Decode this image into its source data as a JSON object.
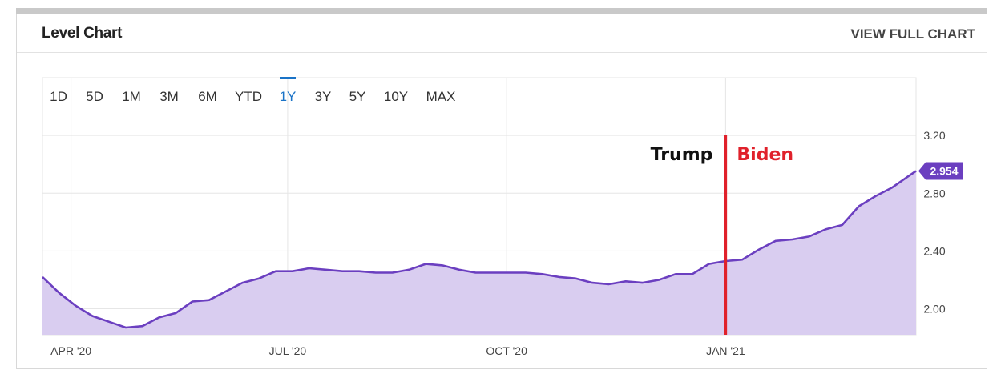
{
  "card": {
    "title": "Level Chart",
    "view_full_label": "VIEW FULL CHART"
  },
  "range_tabs": [
    {
      "label": "1D",
      "active": false
    },
    {
      "label": "5D",
      "active": false
    },
    {
      "label": "1M",
      "active": false
    },
    {
      "label": "3M",
      "active": false
    },
    {
      "label": "6M",
      "active": false
    },
    {
      "label": "YTD",
      "active": false
    },
    {
      "label": "1Y",
      "active": true
    },
    {
      "label": "3Y",
      "active": false
    },
    {
      "label": "5Y",
      "active": false
    },
    {
      "label": "10Y",
      "active": false
    },
    {
      "label": "MAX",
      "active": false
    }
  ],
  "colors": {
    "line": "#6b3fc0",
    "fill": "#d9cdf0",
    "active_tab": "#1a73c7",
    "marker": "#e0212b",
    "badge": "#6b3fc0"
  },
  "chart_data": {
    "type": "area",
    "title": "Level Chart",
    "xlabel": "",
    "ylabel": "",
    "x_tick_labels": [
      "APR '20",
      "JUL '20",
      "OCT '20",
      "JAN '21"
    ],
    "y_tick_labels": [
      "3.20",
      "2.80",
      "2.40",
      "2.00"
    ],
    "y_ticks": [
      3.2,
      2.8,
      2.4,
      2.0
    ],
    "ylim": [
      1.82,
      3.6
    ],
    "x_range": [
      "2020-03-20",
      "2021-03-22"
    ],
    "x_ticks": [
      "2020-04-01",
      "2020-07-01",
      "2020-10-01",
      "2021-01-01"
    ],
    "grid": true,
    "last_value": 2.954,
    "last_value_label": "2.954",
    "series": [
      {
        "points": [
          [
            "2020-03-20",
            2.22
          ],
          [
            "2020-03-27",
            2.11
          ],
          [
            "2020-04-03",
            2.02
          ],
          [
            "2020-04-10",
            1.95
          ],
          [
            "2020-04-17",
            1.91
          ],
          [
            "2020-04-24",
            1.87
          ],
          [
            "2020-05-01",
            1.88
          ],
          [
            "2020-05-08",
            1.94
          ],
          [
            "2020-05-15",
            1.97
          ],
          [
            "2020-05-22",
            2.05
          ],
          [
            "2020-05-29",
            2.06
          ],
          [
            "2020-06-05",
            2.12
          ],
          [
            "2020-06-12",
            2.18
          ],
          [
            "2020-06-19",
            2.21
          ],
          [
            "2020-06-26",
            2.26
          ],
          [
            "2020-07-03",
            2.26
          ],
          [
            "2020-07-10",
            2.28
          ],
          [
            "2020-07-17",
            2.27
          ],
          [
            "2020-07-24",
            2.26
          ],
          [
            "2020-07-31",
            2.26
          ],
          [
            "2020-08-07",
            2.25
          ],
          [
            "2020-08-14",
            2.25
          ],
          [
            "2020-08-21",
            2.27
          ],
          [
            "2020-08-28",
            2.31
          ],
          [
            "2020-09-04",
            2.3
          ],
          [
            "2020-09-11",
            2.27
          ],
          [
            "2020-09-18",
            2.25
          ],
          [
            "2020-09-25",
            2.25
          ],
          [
            "2020-10-02",
            2.25
          ],
          [
            "2020-10-09",
            2.25
          ],
          [
            "2020-10-16",
            2.24
          ],
          [
            "2020-10-23",
            2.22
          ],
          [
            "2020-10-30",
            2.21
          ],
          [
            "2020-11-06",
            2.18
          ],
          [
            "2020-11-13",
            2.17
          ],
          [
            "2020-11-20",
            2.19
          ],
          [
            "2020-11-27",
            2.18
          ],
          [
            "2020-12-04",
            2.2
          ],
          [
            "2020-12-11",
            2.24
          ],
          [
            "2020-12-18",
            2.24
          ],
          [
            "2020-12-25",
            2.31
          ],
          [
            "2021-01-01",
            2.33
          ],
          [
            "2021-01-08",
            2.34
          ],
          [
            "2021-01-15",
            2.41
          ],
          [
            "2021-01-22",
            2.47
          ],
          [
            "2021-01-29",
            2.48
          ],
          [
            "2021-02-05",
            2.5
          ],
          [
            "2021-02-12",
            2.55
          ],
          [
            "2021-02-19",
            2.58
          ],
          [
            "2021-02-26",
            2.71
          ],
          [
            "2021-03-05",
            2.78
          ],
          [
            "2021-03-12",
            2.84
          ],
          [
            "2021-03-19",
            2.92
          ],
          [
            "2021-03-22",
            2.954
          ]
        ]
      }
    ],
    "annotations": [
      {
        "text": "Trump",
        "date": "2021-01-01",
        "side": "left",
        "color": "#111111"
      },
      {
        "text": "Biden",
        "date": "2021-01-01",
        "side": "right",
        "color": "#e0212b"
      }
    ],
    "marker_line_date": "2021-01-01"
  }
}
